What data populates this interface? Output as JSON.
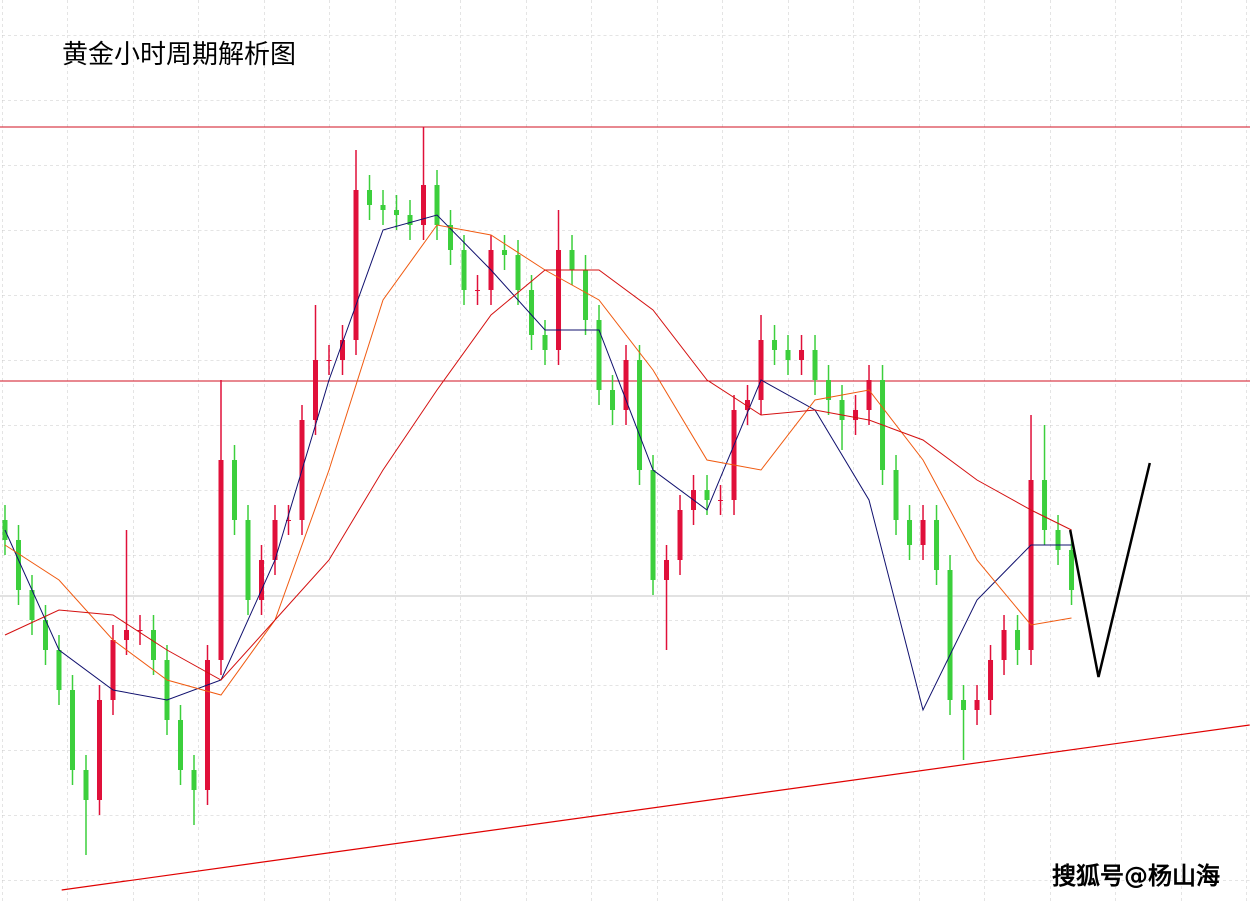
{
  "chart_data": {
    "type": "candlestick",
    "title": "黄金小时周期解析图",
    "watermark": "搜狐号@杨山海",
    "up_color": "#e0103a",
    "down_color": "#3ccf3c",
    "xlim": [
      -0.37,
      92.22
    ],
    "ylim": [
      0,
      904
    ],
    "open": [
      384,
      364,
      314,
      284,
      254,
      214,
      134,
      104,
      204,
      264,
      274,
      274,
      244,
      184,
      134,
      114,
      244,
      444,
      384,
      304,
      344,
      384,
      384,
      484,
      544,
      544,
      564,
      714,
      699,
      694,
      689,
      679,
      719,
      679,
      654,
      614,
      614,
      654,
      649,
      614,
      569,
      554,
      654,
      634,
      584,
      514,
      494,
      544,
      434,
      324,
      344,
      394,
      414,
      404,
      404,
      494,
      504,
      564,
      554,
      544,
      554,
      524,
      504,
      484,
      494,
      524,
      434,
      384,
      359,
      384,
      334,
      204,
      194,
      204,
      244,
      274,
      254,
      424,
      374,
      354
    ],
    "high": [
      399,
      379,
      329,
      299,
      269,
      229,
      149,
      219,
      279,
      374,
      289,
      289,
      259,
      199,
      149,
      259,
      524,
      459,
      399,
      359,
      399,
      399,
      499,
      599,
      559,
      579,
      754,
      729,
      714,
      709,
      704,
      777,
      734,
      694,
      669,
      629,
      669,
      669,
      664,
      629,
      584,
      694,
      669,
      649,
      599,
      529,
      559,
      559,
      449,
      359,
      409,
      429,
      429,
      419,
      509,
      519,
      589,
      579,
      569,
      569,
      569,
      539,
      519,
      509,
      539,
      539,
      449,
      399,
      399,
      399,
      349,
      219,
      219,
      259,
      289,
      289,
      489,
      479,
      389,
      369
    ],
    "low": [
      349,
      299,
      269,
      239,
      199,
      119,
      49,
      89,
      189,
      249,
      259,
      229,
      169,
      119,
      79,
      99,
      229,
      369,
      289,
      289,
      329,
      369,
      369,
      469,
      529,
      529,
      549,
      684,
      679,
      674,
      664,
      664,
      664,
      639,
      599,
      599,
      599,
      634,
      599,
      554,
      539,
      539,
      619,
      569,
      499,
      479,
      479,
      419,
      309,
      254,
      329,
      379,
      389,
      389,
      389,
      479,
      489,
      539,
      529,
      529,
      509,
      489,
      454,
      469,
      479,
      419,
      369,
      344,
      344,
      319,
      189,
      144,
      179,
      189,
      229,
      239,
      239,
      359,
      339,
      299
    ],
    "close": [
      364,
      314,
      284,
      254,
      214,
      134,
      104,
      204,
      264,
      274,
      274,
      244,
      184,
      134,
      114,
      244,
      444,
      384,
      304,
      344,
      384,
      384,
      484,
      544,
      544,
      564,
      714,
      699,
      694,
      689,
      679,
      719,
      679,
      654,
      614,
      614,
      654,
      649,
      614,
      569,
      554,
      654,
      634,
      584,
      514,
      494,
      544,
      434,
      324,
      344,
      394,
      414,
      404,
      404,
      494,
      504,
      564,
      554,
      544,
      554,
      524,
      504,
      484,
      494,
      524,
      434,
      384,
      359,
      384,
      334,
      204,
      194,
      204,
      244,
      274,
      254,
      424,
      374,
      354,
      314
    ],
    "averages": [
      {
        "color": "#10106e",
        "x": [
          0,
          4,
          8,
          12,
          16,
          20,
          24,
          28,
          32,
          36,
          40,
          44,
          48,
          52,
          56,
          60,
          64,
          68,
          72,
          76,
          79
        ],
        "values": [
          374,
          254,
          214,
          204,
          224,
          344,
          524,
          674,
          689,
          634,
          574,
          574,
          434,
          394,
          524,
          494,
          404,
          194,
          304,
          359,
          359
        ]
      },
      {
        "color": "#f05a10",
        "x": [
          0,
          4,
          8,
          12,
          16,
          20,
          24,
          28,
          32,
          36,
          40,
          44,
          48,
          52,
          56,
          60,
          64,
          68,
          72,
          76,
          79
        ],
        "values": [
          359,
          324,
          264,
          224,
          209,
          284,
          434,
          604,
          679,
          669,
          634,
          604,
          534,
          444,
          434,
          504,
          514,
          444,
          344,
          279,
          286
        ]
      },
      {
        "color": "#d41010",
        "x": [
          0,
          4,
          8,
          12,
          16,
          20,
          24,
          28,
          32,
          36,
          40,
          44,
          48,
          52,
          56,
          60,
          64,
          68,
          72,
          76,
          79
        ],
        "values": [
          269,
          294,
          289,
          254,
          224,
          284,
          344,
          434,
          514,
          589,
          634,
          634,
          594,
          524,
          489,
          494,
          484,
          464,
          424,
          394,
          374
        ]
      }
    ],
    "levels": [
      {
        "value": 777,
        "color": "#d01020"
      },
      {
        "value": 523,
        "color": "#d01020"
      },
      {
        "value": 308,
        "color": "#c4c4c4"
      }
    ],
    "lines": [
      {
        "color": "#e00000",
        "width": 1.2,
        "x": [
          4.2,
          92.2
        ],
        "values": [
          14,
          179
        ]
      },
      {
        "color": "#000000",
        "width": 2.5,
        "x": [
          78.9,
          81,
          84.8
        ],
        "values": [
          374,
          227,
          441
        ]
      }
    ]
  }
}
